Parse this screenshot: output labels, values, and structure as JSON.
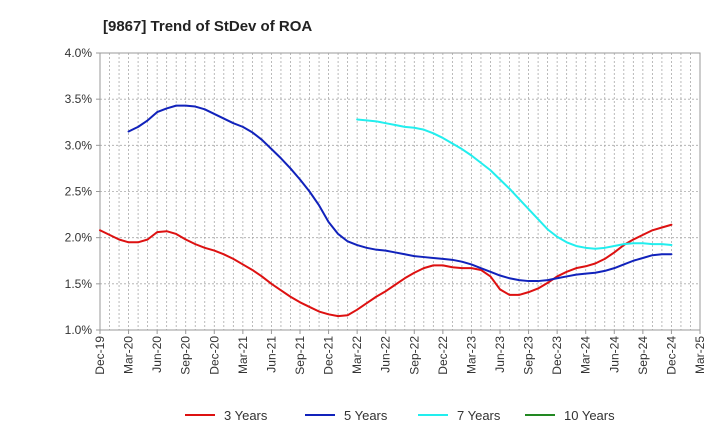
{
  "chart_data": {
    "type": "line",
    "title": "[9867]  Trend of StDev of ROA",
    "xlabel": "",
    "ylabel": "",
    "ylim": [
      1.0,
      4.0
    ],
    "y_ticks": [
      "1.0%",
      "1.5%",
      "2.0%",
      "2.5%",
      "3.0%",
      "3.5%",
      "4.0%"
    ],
    "x_tick_labels": [
      "Dec-19",
      "Mar-20",
      "Jun-20",
      "Sep-20",
      "Dec-20",
      "Mar-21",
      "Jun-21",
      "Sep-21",
      "Dec-21",
      "Mar-22",
      "Jun-22",
      "Sep-22",
      "Dec-22",
      "Mar-23",
      "Jun-23",
      "Sep-23",
      "Dec-23",
      "Mar-24",
      "Jun-24",
      "Sep-24",
      "Dec-24",
      "Mar-25"
    ],
    "grid": true,
    "legend_position": "bottom",
    "series": [
      {
        "name": "3 Years",
        "color": "#dd1111",
        "points": [
          [
            "Dec-19",
            2.08
          ],
          [
            "Jan-20",
            2.03
          ],
          [
            "Feb-20",
            1.98
          ],
          [
            "Mar-20",
            1.95
          ],
          [
            "Apr-20",
            1.95
          ],
          [
            "May-20",
            1.98
          ],
          [
            "Jun-20",
            2.06
          ],
          [
            "Jul-20",
            2.07
          ],
          [
            "Aug-20",
            2.04
          ],
          [
            "Sep-20",
            1.98
          ],
          [
            "Oct-20",
            1.93
          ],
          [
            "Nov-20",
            1.89
          ],
          [
            "Dec-20",
            1.86
          ],
          [
            "Jan-21",
            1.82
          ],
          [
            "Feb-21",
            1.77
          ],
          [
            "Mar-21",
            1.71
          ],
          [
            "Apr-21",
            1.65
          ],
          [
            "May-21",
            1.58
          ],
          [
            "Jun-21",
            1.5
          ],
          [
            "Jul-21",
            1.43
          ],
          [
            "Aug-21",
            1.36
          ],
          [
            "Sep-21",
            1.3
          ],
          [
            "Oct-21",
            1.25
          ],
          [
            "Nov-21",
            1.2
          ],
          [
            "Dec-21",
            1.17
          ],
          [
            "Jan-22",
            1.15
          ],
          [
            "Feb-22",
            1.16
          ],
          [
            "Mar-22",
            1.22
          ],
          [
            "Apr-22",
            1.29
          ],
          [
            "May-22",
            1.36
          ],
          [
            "Jun-22",
            1.42
          ],
          [
            "Jul-22",
            1.49
          ],
          [
            "Aug-22",
            1.56
          ],
          [
            "Sep-22",
            1.62
          ],
          [
            "Oct-22",
            1.67
          ],
          [
            "Nov-22",
            1.7
          ],
          [
            "Dec-22",
            1.7
          ],
          [
            "Jan-23",
            1.68
          ],
          [
            "Feb-23",
            1.67
          ],
          [
            "Mar-23",
            1.67
          ],
          [
            "Apr-23",
            1.65
          ],
          [
            "May-23",
            1.58
          ],
          [
            "Jun-23",
            1.44
          ],
          [
            "Jul-23",
            1.38
          ],
          [
            "Aug-23",
            1.38
          ],
          [
            "Sep-23",
            1.41
          ],
          [
            "Oct-23",
            1.45
          ],
          [
            "Nov-23",
            1.51
          ],
          [
            "Dec-23",
            1.58
          ],
          [
            "Jan-24",
            1.63
          ],
          [
            "Feb-24",
            1.67
          ],
          [
            "Mar-24",
            1.69
          ],
          [
            "Apr-24",
            1.72
          ],
          [
            "May-24",
            1.77
          ],
          [
            "Jun-24",
            1.84
          ],
          [
            "Jul-24",
            1.92
          ],
          [
            "Aug-24",
            1.98
          ],
          [
            "Sep-24",
            2.03
          ],
          [
            "Oct-24",
            2.08
          ],
          [
            "Nov-24",
            2.11
          ],
          [
            "Dec-24",
            2.14
          ]
        ]
      },
      {
        "name": "5 Years",
        "color": "#1122bb",
        "points": [
          [
            "Mar-20",
            3.15
          ],
          [
            "Apr-20",
            3.2
          ],
          [
            "May-20",
            3.27
          ],
          [
            "Jun-20",
            3.36
          ],
          [
            "Jul-20",
            3.4
          ],
          [
            "Aug-20",
            3.43
          ],
          [
            "Sep-20",
            3.43
          ],
          [
            "Oct-20",
            3.42
          ],
          [
            "Nov-20",
            3.39
          ],
          [
            "Dec-20",
            3.34
          ],
          [
            "Jan-21",
            3.29
          ],
          [
            "Feb-21",
            3.24
          ],
          [
            "Mar-21",
            3.2
          ],
          [
            "Apr-21",
            3.14
          ],
          [
            "May-21",
            3.06
          ],
          [
            "Jun-21",
            2.96
          ],
          [
            "Jul-21",
            2.86
          ],
          [
            "Aug-21",
            2.75
          ],
          [
            "Sep-21",
            2.63
          ],
          [
            "Oct-21",
            2.5
          ],
          [
            "Nov-21",
            2.35
          ],
          [
            "Dec-21",
            2.17
          ],
          [
            "Jan-22",
            2.04
          ],
          [
            "Feb-22",
            1.96
          ],
          [
            "Mar-22",
            1.92
          ],
          [
            "Apr-22",
            1.89
          ],
          [
            "May-22",
            1.87
          ],
          [
            "Jun-22",
            1.86
          ],
          [
            "Jul-22",
            1.84
          ],
          [
            "Aug-22",
            1.82
          ],
          [
            "Sep-22",
            1.8
          ],
          [
            "Oct-22",
            1.79
          ],
          [
            "Nov-22",
            1.78
          ],
          [
            "Dec-22",
            1.77
          ],
          [
            "Jan-23",
            1.76
          ],
          [
            "Feb-23",
            1.74
          ],
          [
            "Mar-23",
            1.71
          ],
          [
            "Apr-23",
            1.67
          ],
          [
            "May-23",
            1.63
          ],
          [
            "Jun-23",
            1.59
          ],
          [
            "Jul-23",
            1.56
          ],
          [
            "Aug-23",
            1.54
          ],
          [
            "Sep-23",
            1.53
          ],
          [
            "Oct-23",
            1.53
          ],
          [
            "Nov-23",
            1.54
          ],
          [
            "Dec-23",
            1.56
          ],
          [
            "Jan-24",
            1.58
          ],
          [
            "Feb-24",
            1.6
          ],
          [
            "Mar-24",
            1.61
          ],
          [
            "Apr-24",
            1.62
          ],
          [
            "May-24",
            1.64
          ],
          [
            "Jun-24",
            1.67
          ],
          [
            "Jul-24",
            1.71
          ],
          [
            "Aug-24",
            1.75
          ],
          [
            "Sep-24",
            1.78
          ],
          [
            "Oct-24",
            1.81
          ],
          [
            "Nov-24",
            1.82
          ],
          [
            "Dec-24",
            1.82
          ]
        ]
      },
      {
        "name": "7 Years",
        "color": "#22eeee",
        "points": [
          [
            "Mar-22",
            3.28
          ],
          [
            "Apr-22",
            3.27
          ],
          [
            "May-22",
            3.26
          ],
          [
            "Jun-22",
            3.24
          ],
          [
            "Jul-22",
            3.22
          ],
          [
            "Aug-22",
            3.2
          ],
          [
            "Sep-22",
            3.19
          ],
          [
            "Oct-22",
            3.17
          ],
          [
            "Nov-22",
            3.13
          ],
          [
            "Dec-22",
            3.08
          ],
          [
            "Jan-23",
            3.02
          ],
          [
            "Feb-23",
            2.96
          ],
          [
            "Mar-23",
            2.89
          ],
          [
            "Apr-23",
            2.81
          ],
          [
            "May-23",
            2.73
          ],
          [
            "Jun-23",
            2.63
          ],
          [
            "Jul-23",
            2.53
          ],
          [
            "Aug-23",
            2.42
          ],
          [
            "Sep-23",
            2.31
          ],
          [
            "Oct-23",
            2.2
          ],
          [
            "Nov-23",
            2.09
          ],
          [
            "Dec-23",
            2.01
          ],
          [
            "Jan-24",
            1.95
          ],
          [
            "Feb-24",
            1.91
          ],
          [
            "Mar-24",
            1.89
          ],
          [
            "Apr-24",
            1.88
          ],
          [
            "May-24",
            1.89
          ],
          [
            "Jun-24",
            1.91
          ],
          [
            "Jul-24",
            1.93
          ],
          [
            "Aug-24",
            1.94
          ],
          [
            "Sep-24",
            1.94
          ],
          [
            "Oct-24",
            1.93
          ],
          [
            "Nov-24",
            1.93
          ],
          [
            "Dec-24",
            1.92
          ]
        ]
      },
      {
        "name": "10 Years",
        "color": "#228822",
        "points": []
      }
    ]
  }
}
